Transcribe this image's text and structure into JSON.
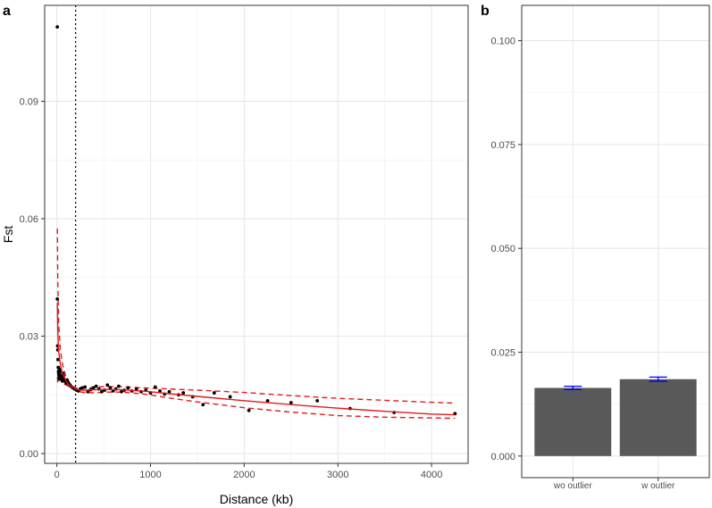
{
  "chart_data": [
    {
      "panel_label": "a",
      "type": "scatter",
      "xlabel": "Distance (kb)",
      "ylabel": "Fst",
      "xlim": [
        -130,
        4390
      ],
      "ylim": [
        -0.0025,
        0.1145
      ],
      "x_ticks": [
        0,
        1000,
        2000,
        3000,
        4000
      ],
      "x_tick_labels": [
        "0",
        "1000",
        "2000",
        "3000",
        "4000"
      ],
      "y_ticks": [
        0.0,
        0.03,
        0.06,
        0.09
      ],
      "y_tick_labels": [
        "0.00",
        "0.03",
        "0.06",
        "0.09"
      ],
      "grid": true,
      "vline": 200,
      "colors": {
        "points": "#000000",
        "fit": "#e41a1c"
      },
      "points": [
        [
          5,
          0.109
        ],
        [
          5,
          0.0395
        ],
        [
          8,
          0.0275
        ],
        [
          10,
          0.0265
        ],
        [
          12,
          0.024
        ],
        [
          15,
          0.022
        ],
        [
          18,
          0.021
        ],
        [
          20,
          0.0205
        ],
        [
          22,
          0.02
        ],
        [
          25,
          0.0195
        ],
        [
          28,
          0.019
        ],
        [
          30,
          0.0215
        ],
        [
          35,
          0.021
        ],
        [
          40,
          0.02
        ],
        [
          45,
          0.0198
        ],
        [
          50,
          0.0192
        ],
        [
          55,
          0.0188
        ],
        [
          60,
          0.0185
        ],
        [
          65,
          0.0205
        ],
        [
          70,
          0.0198
        ],
        [
          80,
          0.019
        ],
        [
          90,
          0.0185
        ],
        [
          100,
          0.018
        ],
        [
          110,
          0.0188
        ],
        [
          120,
          0.0182
        ],
        [
          130,
          0.0178
        ],
        [
          140,
          0.0175
        ],
        [
          150,
          0.0172
        ],
        [
          170,
          0.0168
        ],
        [
          190,
          0.0165
        ],
        [
          210,
          0.0162
        ],
        [
          230,
          0.016
        ],
        [
          250,
          0.0165
        ],
        [
          270,
          0.0168
        ],
        [
          300,
          0.017
        ],
        [
          330,
          0.0158
        ],
        [
          360,
          0.0163
        ],
        [
          390,
          0.0168
        ],
        [
          420,
          0.0172
        ],
        [
          450,
          0.0165
        ],
        [
          480,
          0.0158
        ],
        [
          510,
          0.0162
        ],
        [
          540,
          0.0175
        ],
        [
          570,
          0.0168
        ],
        [
          600,
          0.016
        ],
        [
          630,
          0.0165
        ],
        [
          660,
          0.0172
        ],
        [
          690,
          0.0158
        ],
        [
          720,
          0.0162
        ],
        [
          760,
          0.0168
        ],
        [
          800,
          0.016
        ],
        [
          850,
          0.0165
        ],
        [
          900,
          0.0158
        ],
        [
          950,
          0.0162
        ],
        [
          1000,
          0.0155
        ],
        [
          1050,
          0.017
        ],
        [
          1100,
          0.016
        ],
        [
          1150,
          0.0152
        ],
        [
          1200,
          0.0158
        ],
        [
          1300,
          0.015
        ],
        [
          1350,
          0.0155
        ],
        [
          1450,
          0.0145
        ],
        [
          1560,
          0.0125
        ],
        [
          1680,
          0.0155
        ],
        [
          1850,
          0.0145
        ],
        [
          2050,
          0.011
        ],
        [
          2250,
          0.0135
        ],
        [
          2500,
          0.013
        ],
        [
          2780,
          0.0135
        ],
        [
          3130,
          0.0115
        ],
        [
          3600,
          0.0105
        ],
        [
          4250,
          0.0102
        ]
      ],
      "fit": {
        "x": [
          5,
          10,
          20,
          40,
          60,
          80,
          100,
          120,
          150,
          180,
          200,
          230,
          260,
          300,
          400,
          500,
          700,
          900,
          1000,
          1200,
          1500,
          2000,
          2500,
          3000,
          3500,
          4000,
          4250
        ],
        "y": [
          0.0385,
          0.031,
          0.026,
          0.0225,
          0.0205,
          0.0195,
          0.0185,
          0.0178,
          0.0172,
          0.0168,
          0.0165,
          0.0163,
          0.0162,
          0.0162,
          0.0163,
          0.0164,
          0.0163,
          0.016,
          0.0158,
          0.0153,
          0.0146,
          0.0135,
          0.0125,
          0.0116,
          0.0108,
          0.0101,
          0.0099
        ],
        "upper": [
          0.0575,
          0.044,
          0.033,
          0.026,
          0.023,
          0.021,
          0.0195,
          0.0185,
          0.0177,
          0.0171,
          0.0168,
          0.0166,
          0.0166,
          0.0167,
          0.017,
          0.0171,
          0.0171,
          0.0168,
          0.0167,
          0.0165,
          0.0162,
          0.0156,
          0.0148,
          0.0141,
          0.0136,
          0.0131,
          0.0129
        ],
        "lower": [
          0.0195,
          0.018,
          0.019,
          0.019,
          0.018,
          0.0178,
          0.0175,
          0.0172,
          0.0168,
          0.0165,
          0.0162,
          0.0159,
          0.0157,
          0.0156,
          0.0155,
          0.0157,
          0.0157,
          0.0153,
          0.015,
          0.0142,
          0.0132,
          0.0117,
          0.0106,
          0.0097,
          0.0093,
          0.0091,
          0.009
        ]
      }
    },
    {
      "panel_label": "b",
      "type": "bar",
      "categories": [
        "wo outlier",
        "w outlier"
      ],
      "values": [
        0.0164,
        0.0185
      ],
      "errors": [
        0.0004,
        0.0005
      ],
      "ylim": [
        -0.0052,
        0.1085
      ],
      "y_ticks": [
        0.0,
        0.025,
        0.05,
        0.075,
        0.1
      ],
      "y_tick_labels": [
        "0.000",
        "0.025",
        "0.050",
        "0.075",
        "0.100"
      ],
      "grid": true,
      "colors": {
        "bars": "#595959",
        "errorbars": "#0000ff"
      }
    }
  ]
}
